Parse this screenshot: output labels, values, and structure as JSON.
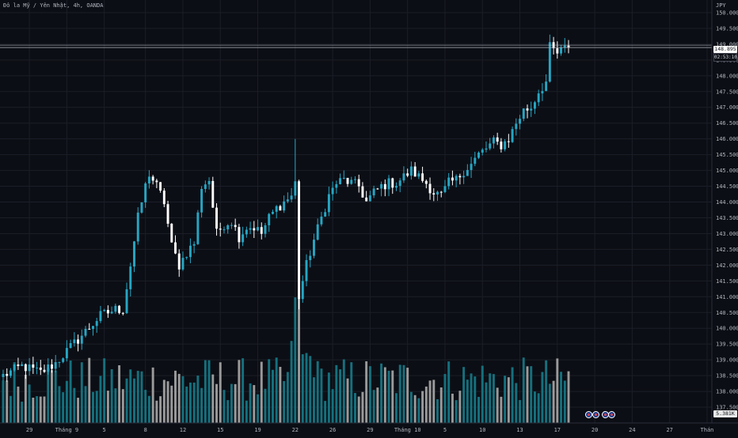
{
  "header": {
    "title": "Đô la Mỹ / Yên Nhật, 4h, OANDA",
    "currency": "JPY"
  },
  "price_tags": {
    "last_price": "148.895",
    "countdown": "02:53:10",
    "volume": "5.381K"
  },
  "colors": {
    "background": "#0c0e15",
    "grid": "#1b1e27",
    "up": "#26a6c3",
    "down": "#ffffff",
    "vol_up": "#15707d",
    "vol_down": "#9a9a9a",
    "axis_text": "#b2b5be"
  },
  "chart_data": {
    "type": "candlestick",
    "title": "Đô la Mỹ / Yên Nhật, 4h, OANDA",
    "ylim": [
      137.0,
      150.4
    ],
    "y_ticks": [
      150.0,
      149.5,
      149.0,
      148.5,
      148.0,
      147.5,
      147.0,
      146.5,
      146.0,
      145.5,
      145.0,
      144.5,
      144.0,
      143.5,
      143.0,
      142.5,
      142.0,
      141.5,
      141.0,
      140.5,
      140.0,
      139.5,
      139.0,
      138.5,
      138.0,
      137.5
    ],
    "y_tick_labels": [
      "150.000",
      "149.500",
      "149.000",
      "148.500",
      "148.000",
      "147.500",
      "147.000",
      "146.500",
      "146.000",
      "145.500",
      "145.000",
      "144.500",
      "144.000",
      "143.500",
      "143.000",
      "142.500",
      "142.000",
      "141.500",
      "141.000",
      "140.500",
      "140.000",
      "139.500",
      "139.000",
      "138.500",
      "138.000",
      "137.500"
    ],
    "x_tick_labels": [
      "29",
      "Tháng 9",
      "5",
      "8",
      "12",
      "15",
      "19",
      "22",
      "26",
      "29",
      "Tháng 10",
      "5",
      "10",
      "13",
      "17",
      "20",
      "24",
      "27",
      "Thán"
    ],
    "x_tick_index": [
      7,
      17,
      27,
      38,
      48,
      58,
      68,
      78,
      88,
      98,
      108,
      118,
      128,
      138,
      148,
      158,
      168,
      178,
      188
    ],
    "price_line": 148.895,
    "waypoints": [
      [
        0,
        138.5
      ],
      [
        5,
        138.8
      ],
      [
        10,
        138.6
      ],
      [
        14,
        138.9
      ],
      [
        18,
        139.4
      ],
      [
        22,
        139.9
      ],
      [
        26,
        140.4
      ],
      [
        30,
        140.6
      ],
      [
        32,
        140.6
      ],
      [
        34,
        142.0
      ],
      [
        36,
        143.5
      ],
      [
        38,
        144.5
      ],
      [
        39,
        144.9
      ],
      [
        41,
        144.5
      ],
      [
        43,
        144.0
      ],
      [
        45,
        142.6
      ],
      [
        47,
        142.0
      ],
      [
        49,
        142.4
      ],
      [
        51,
        142.7
      ],
      [
        53,
        144.5
      ],
      [
        55,
        144.7
      ],
      [
        57,
        143.0
      ],
      [
        59,
        143.3
      ],
      [
        61,
        143.4
      ],
      [
        63,
        142.9
      ],
      [
        65,
        143.2
      ],
      [
        67,
        143.2
      ],
      [
        69,
        143.0
      ],
      [
        71,
        143.5
      ],
      [
        73,
        143.8
      ],
      [
        75,
        144.0
      ],
      [
        77,
        144.2
      ],
      [
        78,
        144.6
      ],
      [
        79,
        141.0
      ],
      [
        81,
        142.0
      ],
      [
        83,
        142.8
      ],
      [
        85,
        143.5
      ],
      [
        87,
        144.2
      ],
      [
        89,
        144.6
      ],
      [
        91,
        144.7
      ],
      [
        93,
        144.6
      ],
      [
        95,
        144.5
      ],
      [
        97,
        144.0
      ],
      [
        99,
        144.3
      ],
      [
        101,
        144.5
      ],
      [
        103,
        144.6
      ],
      [
        105,
        144.6
      ],
      [
        107,
        144.8
      ],
      [
        109,
        145.0
      ],
      [
        111,
        144.8
      ],
      [
        113,
        144.6
      ],
      [
        115,
        144.3
      ],
      [
        117,
        144.2
      ],
      [
        119,
        144.6
      ],
      [
        121,
        144.7
      ],
      [
        123,
        145.0
      ],
      [
        125,
        145.2
      ],
      [
        127,
        145.5
      ],
      [
        129,
        145.7
      ],
      [
        131,
        145.9
      ],
      [
        133,
        145.8
      ],
      [
        135,
        146.0
      ],
      [
        137,
        146.5
      ],
      [
        139,
        146.9
      ],
      [
        141,
        147.0
      ],
      [
        143,
        147.5
      ],
      [
        145,
        147.8
      ],
      [
        146,
        148.9
      ],
      [
        148,
        148.7
      ],
      [
        150,
        148.85
      ],
      [
        151,
        148.895
      ]
    ],
    "volume_range": [
      0,
      3700
    ]
  }
}
